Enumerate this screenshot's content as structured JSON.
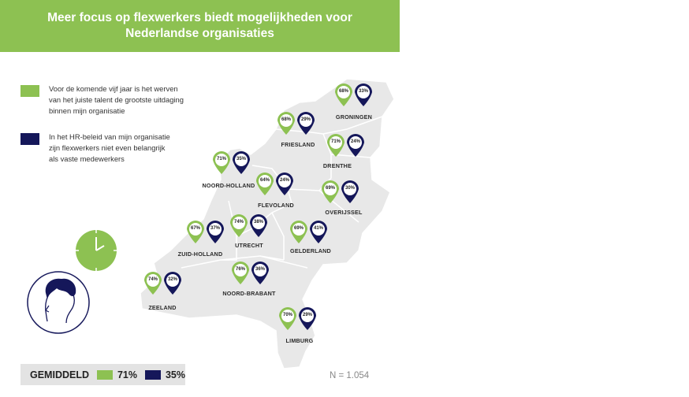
{
  "title": {
    "line1": "Meer focus op flexwerkers biedt mogelijkheden voor",
    "line2": "Nederlandse organisaties"
  },
  "legend": [
    {
      "color": "#8dc152",
      "lines": [
        "Voor de komende vijf jaar is het werven",
        "van het juiste talent de grootste uitdaging",
        "binnen mijn organisatie"
      ]
    },
    {
      "color": "#15175a",
      "lines": [
        "In het HR-beleid van mijn organisatie",
        "zijn flexwerkers niet even belangrijk",
        "als vaste medewerkers"
      ]
    }
  ],
  "colors": {
    "green": "#8dc152",
    "navy": "#15175a",
    "map": "#e8e8e8"
  },
  "provinces": [
    {
      "name": "GRONINGEN",
      "green": "68%",
      "navy": "33%"
    },
    {
      "name": "FRIESLAND",
      "green": "68%",
      "navy": "29%"
    },
    {
      "name": "DRENTHE",
      "green": "71%",
      "navy": "24%"
    },
    {
      "name": "NOORD-HOLLAND",
      "green": "71%",
      "navy": "35%"
    },
    {
      "name": "FLEVOLAND",
      "green": "64%",
      "navy": "24%"
    },
    {
      "name": "OVERIJSSEL",
      "green": "69%",
      "navy": "30%"
    },
    {
      "name": "ZUID-HOLLAND",
      "green": "67%",
      "navy": "37%"
    },
    {
      "name": "UTRECHT",
      "green": "74%",
      "navy": "38%"
    },
    {
      "name": "GELDERLAND",
      "green": "69%",
      "navy": "41%"
    },
    {
      "name": "ZEELAND",
      "green": "74%",
      "navy": "32%"
    },
    {
      "name": "NOORD-BRABANT",
      "green": "76%",
      "navy": "36%"
    },
    {
      "name": "LIMBURG",
      "green": "70%",
      "navy": "29%"
    }
  ],
  "average": {
    "label": "GEMIDDELD",
    "green": "71%",
    "navy": "35%"
  },
  "sample": "N = 1.054",
  "icons": [
    "clock-icon",
    "person-head-icon"
  ]
}
